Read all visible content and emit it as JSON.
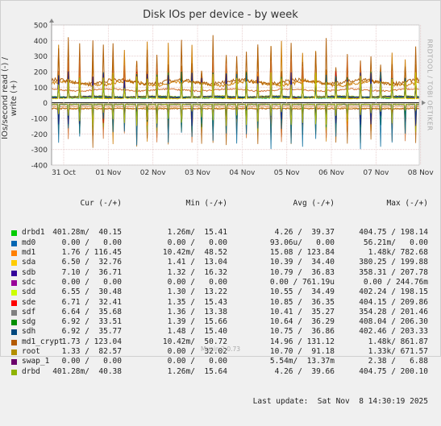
{
  "chart_data": {
    "type": "line",
    "title": "Disk IOs per device - by week",
    "ylabel": "IOs/second read (-) / write (+)",
    "ylim": [
      -400,
      500
    ],
    "yticks": [
      -400,
      -300,
      -200,
      -100,
      0,
      100,
      200,
      300,
      400,
      500
    ],
    "xticks": [
      "31 Oct",
      "01 Nov",
      "02 Nov",
      "03 Nov",
      "04 Nov",
      "05 Nov",
      "06 Nov",
      "07 Nov",
      "08 Nov"
    ],
    "grid": true,
    "series": [
      {
        "name": "md1",
        "color": "#cc7a00",
        "base": 125,
        "noise": 20,
        "spike": 400,
        "neg_spike": -280
      },
      {
        "name": "md1_crypt",
        "color": "#ad5a00",
        "base": 135,
        "noise": 22,
        "spike": 440,
        "neg_spike": -300
      },
      {
        "name": "root",
        "color": "#cc6a29",
        "base": 82,
        "noise": 10,
        "spike": 300,
        "neg_spike": -260
      },
      {
        "name": "drbd1",
        "color": "#99b300",
        "base": 40,
        "noise": 6,
        "spike": 200,
        "neg_spike": -200
      },
      {
        "name": "drbd",
        "color": "#8ca31c",
        "base": 40,
        "noise": 6,
        "spike": 198,
        "neg_spike": -200
      },
      {
        "name": "sde",
        "color": "#cc0000",
        "base": 32,
        "noise": 5,
        "spike": 210,
        "neg_spike": -150
      },
      {
        "name": "sda",
        "color": "#ff7f00",
        "base": 33,
        "noise": 5,
        "spike": 200,
        "neg_spike": -150
      },
      {
        "name": "sdf",
        "color": "#006633",
        "base": 35,
        "noise": 5,
        "spike": 200,
        "neg_spike": -160
      },
      {
        "name": "sdg",
        "color": "#00994d",
        "base": 33,
        "noise": 5,
        "spike": 206,
        "neg_spike": -160
      },
      {
        "name": "sdh",
        "color": "#006699",
        "base": 35,
        "noise": 5,
        "spike": 203,
        "neg_spike": -300
      },
      {
        "name": "sdb",
        "color": "#1a1a8c",
        "base": 37,
        "noise": 5,
        "spike": 207,
        "neg_spike": -150
      },
      {
        "name": "sdd",
        "color": "#cccc00",
        "base": 30,
        "noise": 5,
        "spike": 198,
        "neg_spike": -150
      }
    ]
  },
  "legend": {
    "headers": {
      "cur": "Cur (-/+)",
      "min": "Min (-/+)",
      "avg": "Avg (-/+)",
      "max": "Max (-/+)"
    },
    "rows": [
      {
        "name": "drbd1",
        "color": "#00cc00",
        "cur": "401.28m/  40.15",
        "min": "1.26m/  15.41",
        "avg": "4.26 /  39.37",
        "max": "404.75 / 198.14"
      },
      {
        "name": "md0",
        "color": "#0066b3",
        "cur": "0.00 /   0.00",
        "min": "0.00 /   0.00",
        "avg": "93.06u/   0.00",
        "max": "56.21m/   0.00"
      },
      {
        "name": "md1",
        "color": "#ff8000",
        "cur": "1.76 / 116.45",
        "min": "10.42m/  48.52",
        "avg": "15.08 / 123.84",
        "max": "1.48k/ 782.68"
      },
      {
        "name": "sda",
        "color": "#ffcc00",
        "cur": "6.50 /  32.76",
        "min": "1.41 /  13.04",
        "avg": "10.39 /  34.40",
        "max": "380.25 / 199.88"
      },
      {
        "name": "sdb",
        "color": "#330099",
        "cur": "7.10 /  36.71",
        "min": "1.32 /  16.32",
        "avg": "10.79 /  36.83",
        "max": "358.31 / 207.78"
      },
      {
        "name": "sdc",
        "color": "#990099",
        "cur": "0.00 /   0.00",
        "min": "0.00 /   0.00",
        "avg": "0.00 / 761.19u",
        "max": "0.00 / 244.76m"
      },
      {
        "name": "sdd",
        "color": "#ccff00",
        "cur": "6.55 /  30.48",
        "min": "1.30 /  13.22",
        "avg": "10.55 /  34.49",
        "max": "402.24 / 198.15"
      },
      {
        "name": "sde",
        "color": "#ff0000",
        "cur": "6.71 /  32.41",
        "min": "1.35 /  15.43",
        "avg": "10.85 /  36.35",
        "max": "404.15 / 209.86"
      },
      {
        "name": "sdf",
        "color": "#808080",
        "cur": "6.64 /  35.68",
        "min": "1.36 /  13.38",
        "avg": "10.41 /  35.27",
        "max": "354.28 / 201.46"
      },
      {
        "name": "sdg",
        "color": "#008f00",
        "cur": "6.92 /  33.51",
        "min": "1.39 /  15.66",
        "avg": "10.64 /  36.29",
        "max": "408.04 / 206.30"
      },
      {
        "name": "sdh",
        "color": "#00487d",
        "cur": "6.92 /  35.77",
        "min": "1.48 /  15.40",
        "avg": "10.75 /  36.86",
        "max": "402.46 / 203.33"
      },
      {
        "name": "md1_crypt",
        "color": "#b35a00",
        "cur": "1.73 / 123.04",
        "min": "10.42m/  50.72",
        "avg": "14.96 / 131.12",
        "max": "1.48k/ 861.87"
      },
      {
        "name": "root",
        "color": "#b38f00",
        "cur": "1.33 /  82.57",
        "min": "0.00 /  32.02",
        "avg": "10.70 /  91.18",
        "max": "1.33k/ 671.57"
      },
      {
        "name": "swap_1",
        "color": "#6b006b",
        "cur": "0.00 /   0.00",
        "min": "0.00 /   0.00",
        "avg": "5.54m/  13.37m",
        "max": "2.38 /   6.88"
      },
      {
        "name": "drbd",
        "color": "#8fb300",
        "cur": "401.28m/  40.38",
        "min": "1.26m/  15.64",
        "avg": "4.26 /  39.66",
        "max": "404.75 / 200.10"
      }
    ],
    "last_update": "Last update:  Sat Nov  8 14:30:19 2025"
  },
  "side_tag": "RRDTOOL / TOBI OETIKER",
  "footer": "Munin 2.0.73"
}
